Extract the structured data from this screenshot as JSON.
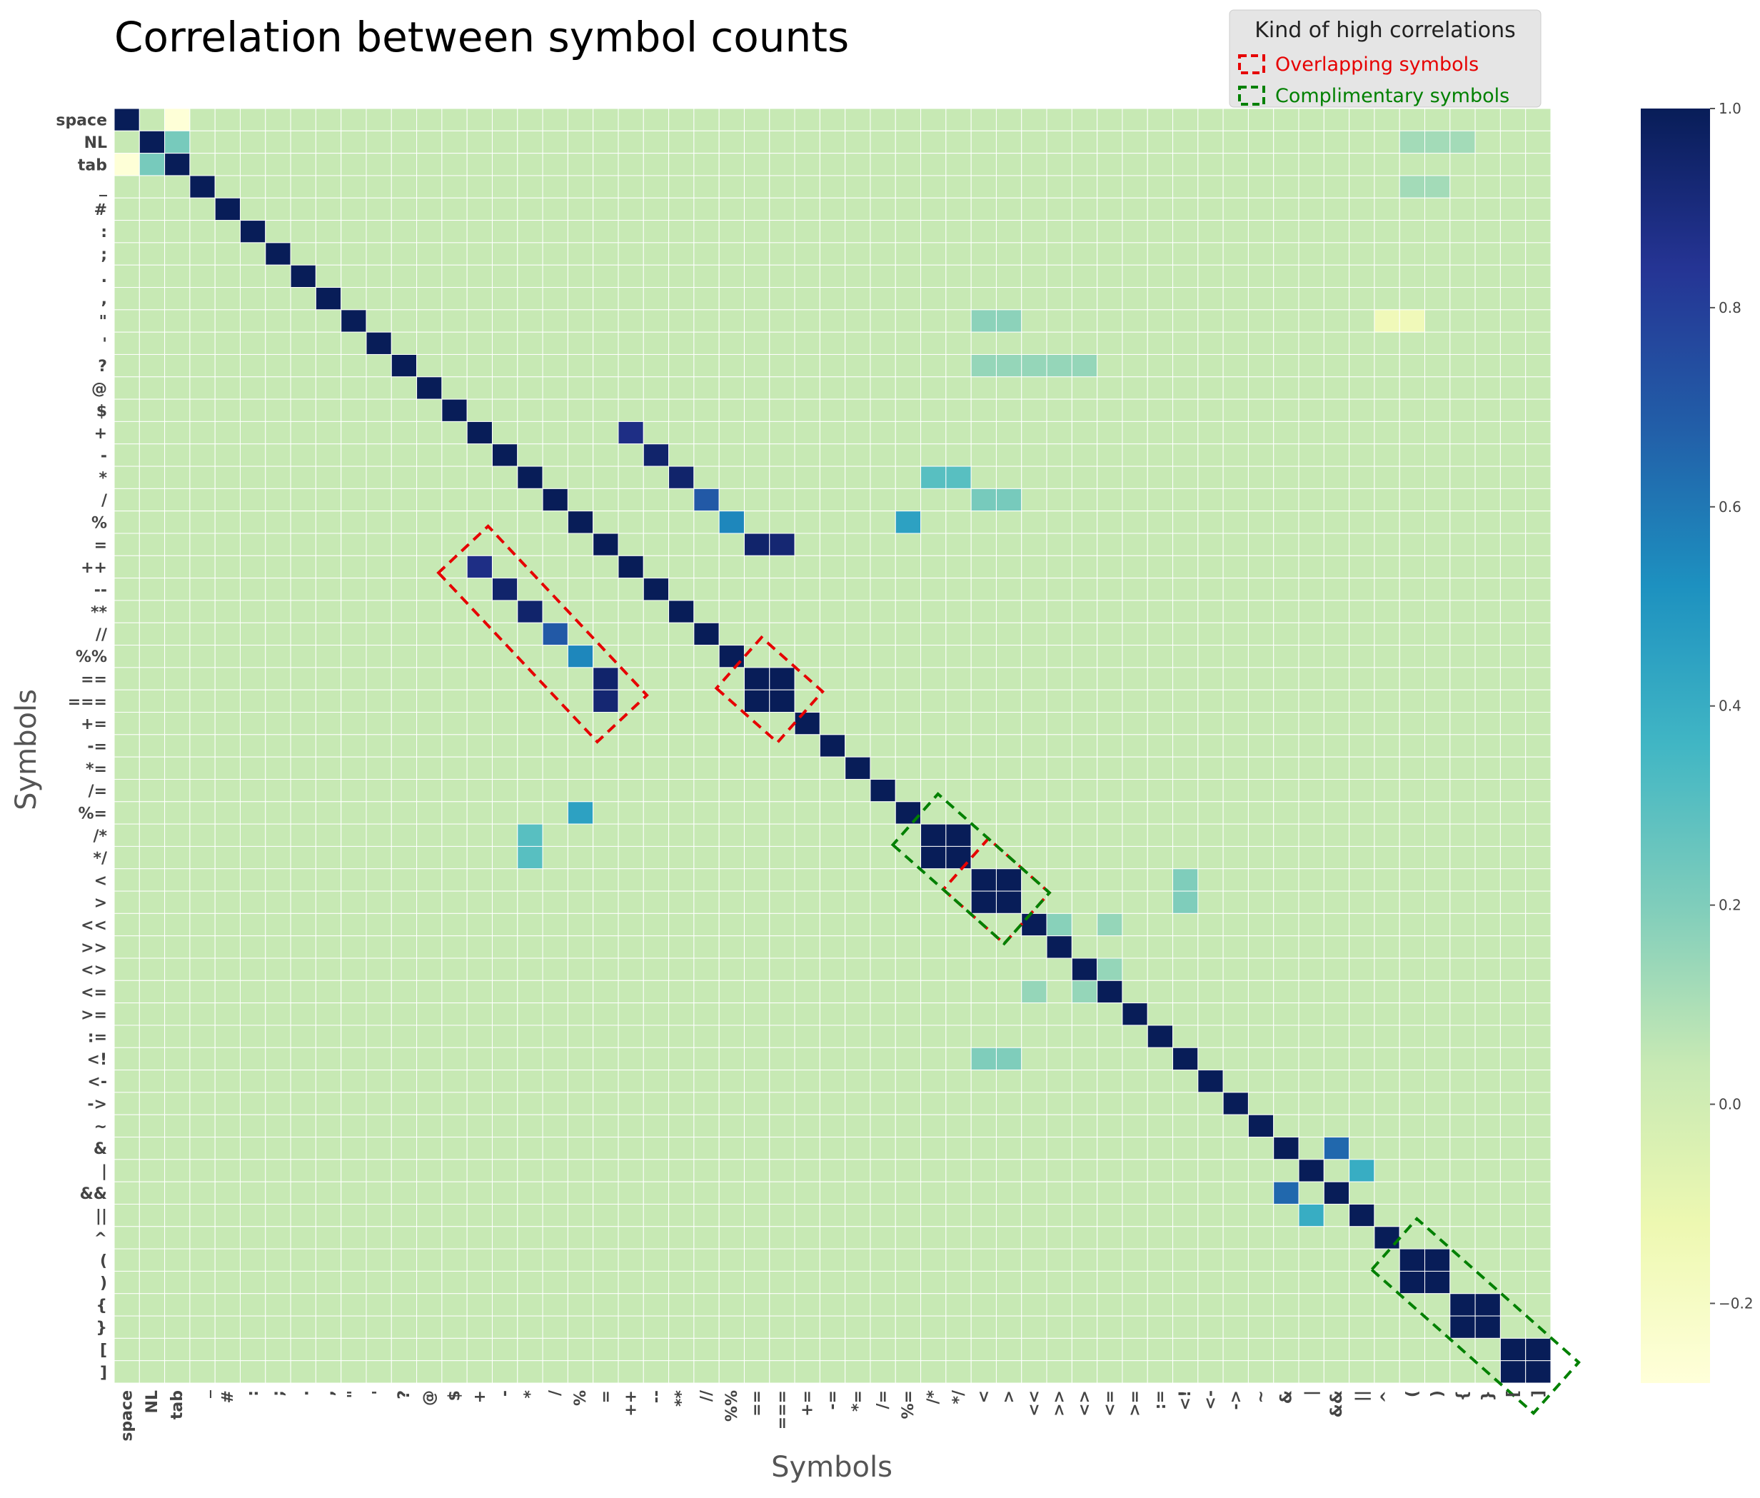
{
  "chart_data": {
    "type": "heatmap",
    "title": "Correlation between symbol counts",
    "xlabel": "Symbols",
    "ylabel": "Symbols",
    "labels": [
      "space",
      "NL",
      "tab",
      "_",
      "#",
      ":",
      ";",
      ".",
      ",",
      "\"",
      "'",
      "?",
      "@",
      "$",
      "+",
      "-",
      "*",
      "/",
      "%",
      "=",
      "++",
      "--",
      "**",
      "//",
      "%%",
      "==",
      "===",
      "+=",
      "-=",
      "*=",
      "/=",
      "%=",
      "/*",
      "*/",
      "<",
      ">",
      "<<",
      ">>",
      "<>",
      "<=",
      ">=",
      ":=",
      "<!",
      "<-",
      "->",
      "~",
      "&",
      "|",
      "&&",
      "||",
      "^",
      "(",
      ")",
      "{",
      "}",
      "[",
      "]"
    ],
    "value_range": [
      -0.28,
      1.0
    ],
    "colorbar": {
      "ticks": [
        1.0,
        0.8,
        0.6,
        0.4,
        0.2,
        0.0,
        -0.2
      ],
      "tick_labels": [
        "1.0",
        "0.8",
        "0.6",
        "0.4",
        "0.2",
        "0.0",
        "−0.2"
      ],
      "colormap": "YlGnBu"
    },
    "default_value": 0.04,
    "cells": [
      [
        1,
        2,
        0.22
      ],
      [
        2,
        1,
        0.22
      ],
      [
        0,
        2,
        -0.27
      ],
      [
        2,
        0,
        -0.27
      ],
      [
        3,
        51,
        0.12
      ],
      [
        3,
        52,
        0.12
      ],
      [
        1,
        51,
        0.12
      ],
      [
        1,
        52,
        0.12
      ],
      [
        1,
        53,
        0.12
      ],
      [
        9,
        50,
        -0.15
      ],
      [
        9,
        51,
        -0.15
      ],
      [
        9,
        34,
        0.17
      ],
      [
        9,
        35,
        0.17
      ],
      [
        14,
        20,
        0.88
      ],
      [
        20,
        14,
        0.88
      ],
      [
        15,
        21,
        0.95
      ],
      [
        21,
        15,
        0.95
      ],
      [
        16,
        22,
        0.95
      ],
      [
        22,
        16,
        0.95
      ],
      [
        17,
        23,
        0.7
      ],
      [
        23,
        17,
        0.7
      ],
      [
        18,
        24,
        0.55
      ],
      [
        24,
        18,
        0.55
      ],
      [
        18,
        31,
        0.45
      ],
      [
        31,
        18,
        0.45
      ],
      [
        19,
        25,
        0.95
      ],
      [
        25,
        19,
        0.95
      ],
      [
        19,
        26,
        0.93
      ],
      [
        26,
        19,
        0.93
      ],
      [
        25,
        26,
        1
      ],
      [
        26,
        25,
        1
      ],
      [
        32,
        33,
        1
      ],
      [
        33,
        32,
        1
      ],
      [
        34,
        35,
        1
      ],
      [
        35,
        34,
        1
      ],
      [
        51,
        52,
        1
      ],
      [
        52,
        51,
        1
      ],
      [
        53,
        54,
        1
      ],
      [
        54,
        53,
        1
      ],
      [
        55,
        56,
        1
      ],
      [
        56,
        55,
        1
      ],
      [
        46,
        48,
        0.65
      ],
      [
        48,
        46,
        0.65
      ],
      [
        47,
        49,
        0.4
      ],
      [
        49,
        47,
        0.4
      ],
      [
        16,
        32,
        0.3
      ],
      [
        32,
        16,
        0.3
      ],
      [
        16,
        33,
        0.3
      ],
      [
        33,
        16,
        0.3
      ],
      [
        16,
        32,
        0.3
      ],
      [
        17,
        34,
        0.22
      ],
      [
        17,
        35,
        0.22
      ],
      [
        36,
        37,
        0.18
      ],
      [
        38,
        39,
        0.15
      ],
      [
        39,
        36,
        0.15
      ],
      [
        39,
        38,
        0.15
      ],
      [
        36,
        39,
        0.15
      ],
      [
        34,
        42,
        0.2
      ],
      [
        35,
        42,
        0.2
      ],
      [
        42,
        34,
        0.2
      ],
      [
        42,
        35,
        0.2
      ],
      [
        11,
        34,
        0.15
      ],
      [
        11,
        35,
        0.15
      ],
      [
        11,
        36,
        0.15
      ],
      [
        11,
        37,
        0.15
      ],
      [
        11,
        38,
        0.15
      ]
    ],
    "annotations": [
      {
        "text": "",
        "style": "red",
        "from": [
          20,
          14
        ],
        "to": [
          26,
          19
        ]
      },
      {
        "text": "",
        "style": "red",
        "from": [
          25,
          25
        ],
        "to": [
          26,
          26
        ]
      },
      {
        "text": "",
        "style": "red",
        "from": [
          34,
          34
        ],
        "to": [
          35,
          35
        ]
      },
      {
        "text": "",
        "style": "green",
        "from": [
          32,
          32
        ],
        "to": [
          35,
          35
        ]
      },
      {
        "text": "",
        "style": "green",
        "from": [
          51,
          51
        ],
        "to": [
          56,
          56
        ]
      }
    ],
    "legend": {
      "title": "Kind of high correlations",
      "placement": "top-right",
      "entries": [
        {
          "label": "Overlapping symbols",
          "color": "#e60000"
        },
        {
          "label": "Complimentary symbols",
          "color": "#008000"
        }
      ]
    }
  }
}
